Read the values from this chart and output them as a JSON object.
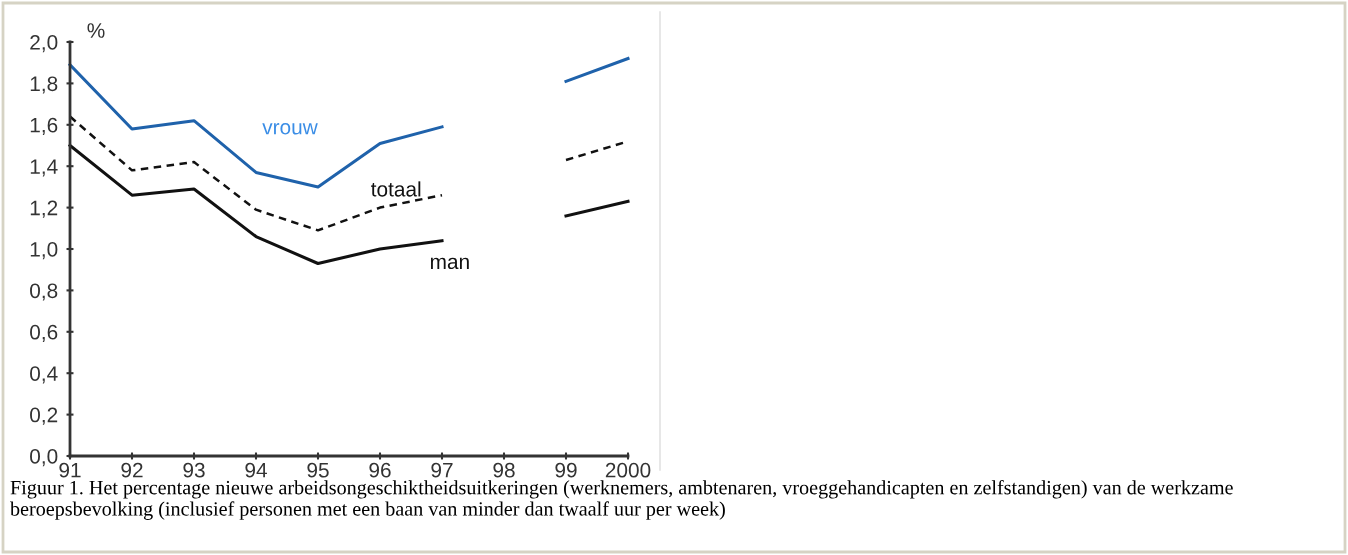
{
  "chart_data": {
    "type": "line",
    "ylabel": "%",
    "categories": [
      "91",
      "92",
      "93",
      "94",
      "95",
      "96",
      "97",
      "98",
      "99",
      "2000"
    ],
    "series": [
      {
        "name": "vrouw",
        "color": "#1f62ab",
        "line_style": "solid",
        "values": [
          1.89,
          1.58,
          1.62,
          1.37,
          1.3,
          1.51,
          1.59,
          null,
          1.81,
          1.92
        ]
      },
      {
        "name": "totaal",
        "color": "#111111",
        "line_style": "dashed",
        "values": [
          1.64,
          1.38,
          1.42,
          1.19,
          1.09,
          1.2,
          1.26,
          null,
          1.43,
          1.52
        ]
      },
      {
        "name": "man",
        "color": "#111111",
        "line_style": "solid",
        "values": [
          1.5,
          1.26,
          1.29,
          1.06,
          0.93,
          1.0,
          1.04,
          null,
          1.16,
          1.23
        ]
      }
    ],
    "ylim": [
      0,
      2.0
    ],
    "yticks": [
      {
        "value": 0,
        "label": "0,0"
      },
      {
        "value": 0.2,
        "label": "0,2"
      },
      {
        "value": 0.4,
        "label": "0,4"
      },
      {
        "value": 0.6,
        "label": "0,6"
      },
      {
        "value": 0.8,
        "label": "0,8"
      },
      {
        "value": 1.0,
        "label": "1,0"
      },
      {
        "value": 1.2,
        "label": "1,2"
      },
      {
        "value": 1.4,
        "label": "1,4"
      },
      {
        "value": 1.6,
        "label": "1,6"
      },
      {
        "value": 1.8,
        "label": "1,8"
      },
      {
        "value": 2.0,
        "label": "2,0"
      }
    ],
    "grid": false,
    "legend": false,
    "annotations": [
      "Figuur 1. Het percentage nieuwe arbeidsongeschiktheidsuitkeringen (werknemers, ambtenaren, vroeggehandicapten en zelfstandigen) van de werkzame beroepsbevolking (inclusief personen met een baan van minder dan twaalf uur per week)"
    ]
  }
}
